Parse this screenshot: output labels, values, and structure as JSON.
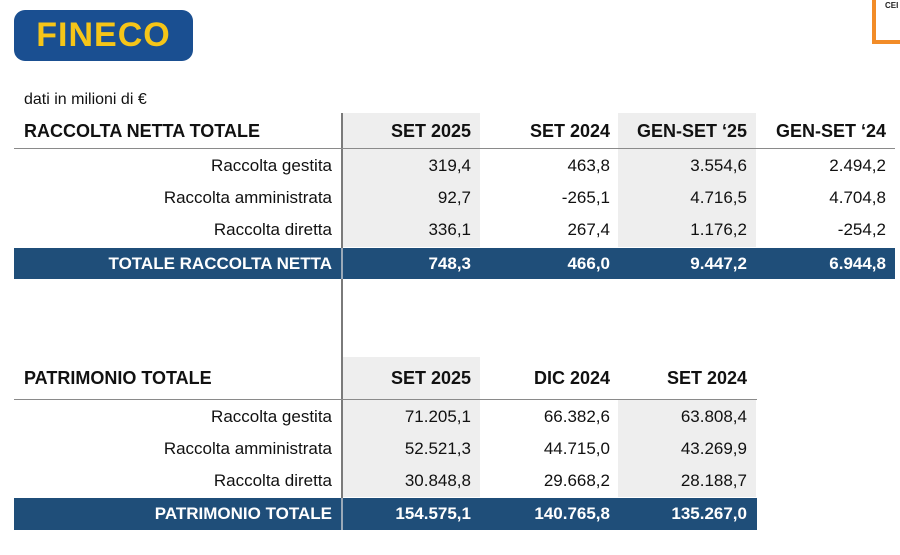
{
  "brand": {
    "logo_text": "FINECO",
    "corner_text": "CEI"
  },
  "unit_note": "dati in milioni di €",
  "raccolta": {
    "title": "RACCOLTA NETTA TOTALE",
    "columns": [
      "SET 2025",
      "SET 2024",
      "GEN-SET ‘25",
      "GEN-SET ‘24"
    ],
    "rows": [
      {
        "label": "Raccolta gestita",
        "values": [
          "319,4",
          "463,8",
          "3.554,6",
          "2.494,2"
        ]
      },
      {
        "label": "Raccolta amministrata",
        "values": [
          "92,7",
          "-265,1",
          "4.716,5",
          "4.704,8"
        ]
      },
      {
        "label": "Raccolta diretta",
        "values": [
          "336,1",
          "267,4",
          "1.176,2",
          "-254,2"
        ]
      }
    ],
    "total": {
      "label": "TOTALE RACCOLTA NETTA",
      "values": [
        "748,3",
        "466,0",
        "9.447,2",
        "6.944,8"
      ]
    }
  },
  "patrimonio": {
    "title": "PATRIMONIO TOTALE",
    "columns": [
      "SET 2025",
      "DIC 2024",
      "SET 2024"
    ],
    "rows": [
      {
        "label": "Raccolta gestita",
        "values": [
          "71.205,1",
          "66.382,6",
          "63.808,4"
        ]
      },
      {
        "label": "Raccolta amministrata",
        "values": [
          "52.521,3",
          "44.715,0",
          "43.269,9"
        ]
      },
      {
        "label": "Raccolta diretta",
        "values": [
          "30.848,8",
          "29.668,2",
          "28.188,7"
        ]
      }
    ],
    "total": {
      "label": "PATRIMONIO TOTALE",
      "values": [
        "154.575,1",
        "140.765,8",
        "135.267,0"
      ]
    }
  }
}
